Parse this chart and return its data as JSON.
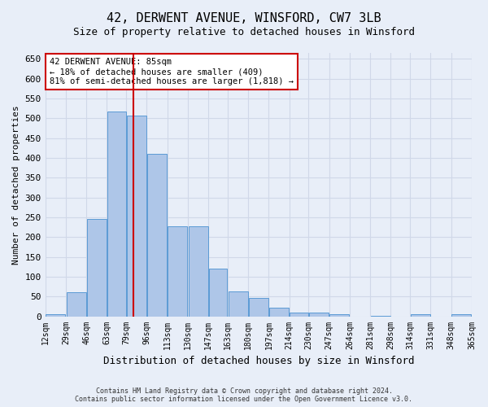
{
  "title1": "42, DERWENT AVENUE, WINSFORD, CW7 3LB",
  "title2": "Size of property relative to detached houses in Winsford",
  "xlabel": "Distribution of detached houses by size in Winsford",
  "ylabel": "Number of detached properties",
  "annotation_line1": "42 DERWENT AVENUE: 85sqm",
  "annotation_line2": "← 18% of detached houses are smaller (409)",
  "annotation_line3": "81% of semi-detached houses are larger (1,818) →",
  "footer1": "Contains HM Land Registry data © Crown copyright and database right 2024.",
  "footer2": "Contains public sector information licensed under the Open Government Licence v3.0.",
  "bar_color": "#aec6e8",
  "bar_edge_color": "#5b9bd5",
  "property_line_color": "#cc0000",
  "property_sqm": 85,
  "bin_edges": [
    12,
    29,
    46,
    63,
    79,
    96,
    113,
    130,
    147,
    163,
    180,
    197,
    214,
    230,
    247,
    264,
    281,
    298,
    314,
    331,
    348,
    365
  ],
  "bar_heights": [
    5,
    60,
    245,
    517,
    507,
    410,
    228,
    228,
    120,
    63,
    47,
    22,
    10,
    9,
    5,
    0,
    2,
    0,
    5,
    0,
    5
  ],
  "ylim": [
    0,
    665
  ],
  "yticks": [
    0,
    50,
    100,
    150,
    200,
    250,
    300,
    350,
    400,
    450,
    500,
    550,
    600,
    650
  ],
  "annotation_box_color": "#ffffff",
  "annotation_box_edge": "#cc0000",
  "grid_color": "#d0d8e8",
  "background_color": "#e8eef8"
}
